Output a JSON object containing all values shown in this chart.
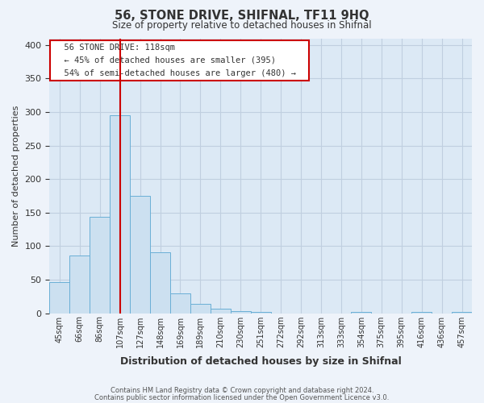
{
  "title": "56, STONE DRIVE, SHIFNAL, TF11 9HQ",
  "subtitle": "Size of property relative to detached houses in Shifnal",
  "xlabel": "Distribution of detached houses by size in Shifnal",
  "ylabel": "Number of detached properties",
  "bar_values": [
    47,
    86,
    144,
    295,
    175,
    91,
    30,
    14,
    7,
    3,
    2,
    0,
    0,
    0,
    0,
    2,
    0,
    0,
    2,
    0,
    2
  ],
  "bin_labels": [
    "45sqm",
    "66sqm",
    "86sqm",
    "107sqm",
    "127sqm",
    "148sqm",
    "169sqm",
    "189sqm",
    "210sqm",
    "230sqm",
    "251sqm",
    "272sqm",
    "292sqm",
    "313sqm",
    "333sqm",
    "354sqm",
    "375sqm",
    "395sqm",
    "416sqm",
    "436sqm",
    "457sqm"
  ],
  "bar_color": "#cce0f0",
  "bar_edge_color": "#6aafd6",
  "vline_color": "#cc0000",
  "vline_x": 3.5,
  "ylim": [
    0,
    410
  ],
  "yticks": [
    0,
    50,
    100,
    150,
    200,
    250,
    300,
    350,
    400
  ],
  "annotation_title": "56 STONE DRIVE: 118sqm",
  "annotation_line1": "← 45% of detached houses are smaller (395)",
  "annotation_line2": "54% of semi-detached houses are larger (480) →",
  "footer_line1": "Contains HM Land Registry data © Crown copyright and database right 2024.",
  "footer_line2": "Contains public sector information licensed under the Open Government Licence v3.0.",
  "background_color": "#eef3fa",
  "plot_bg_color": "#dce9f5",
  "grid_color": "#c0cfe0",
  "ann_border_color": "#cc0000"
}
